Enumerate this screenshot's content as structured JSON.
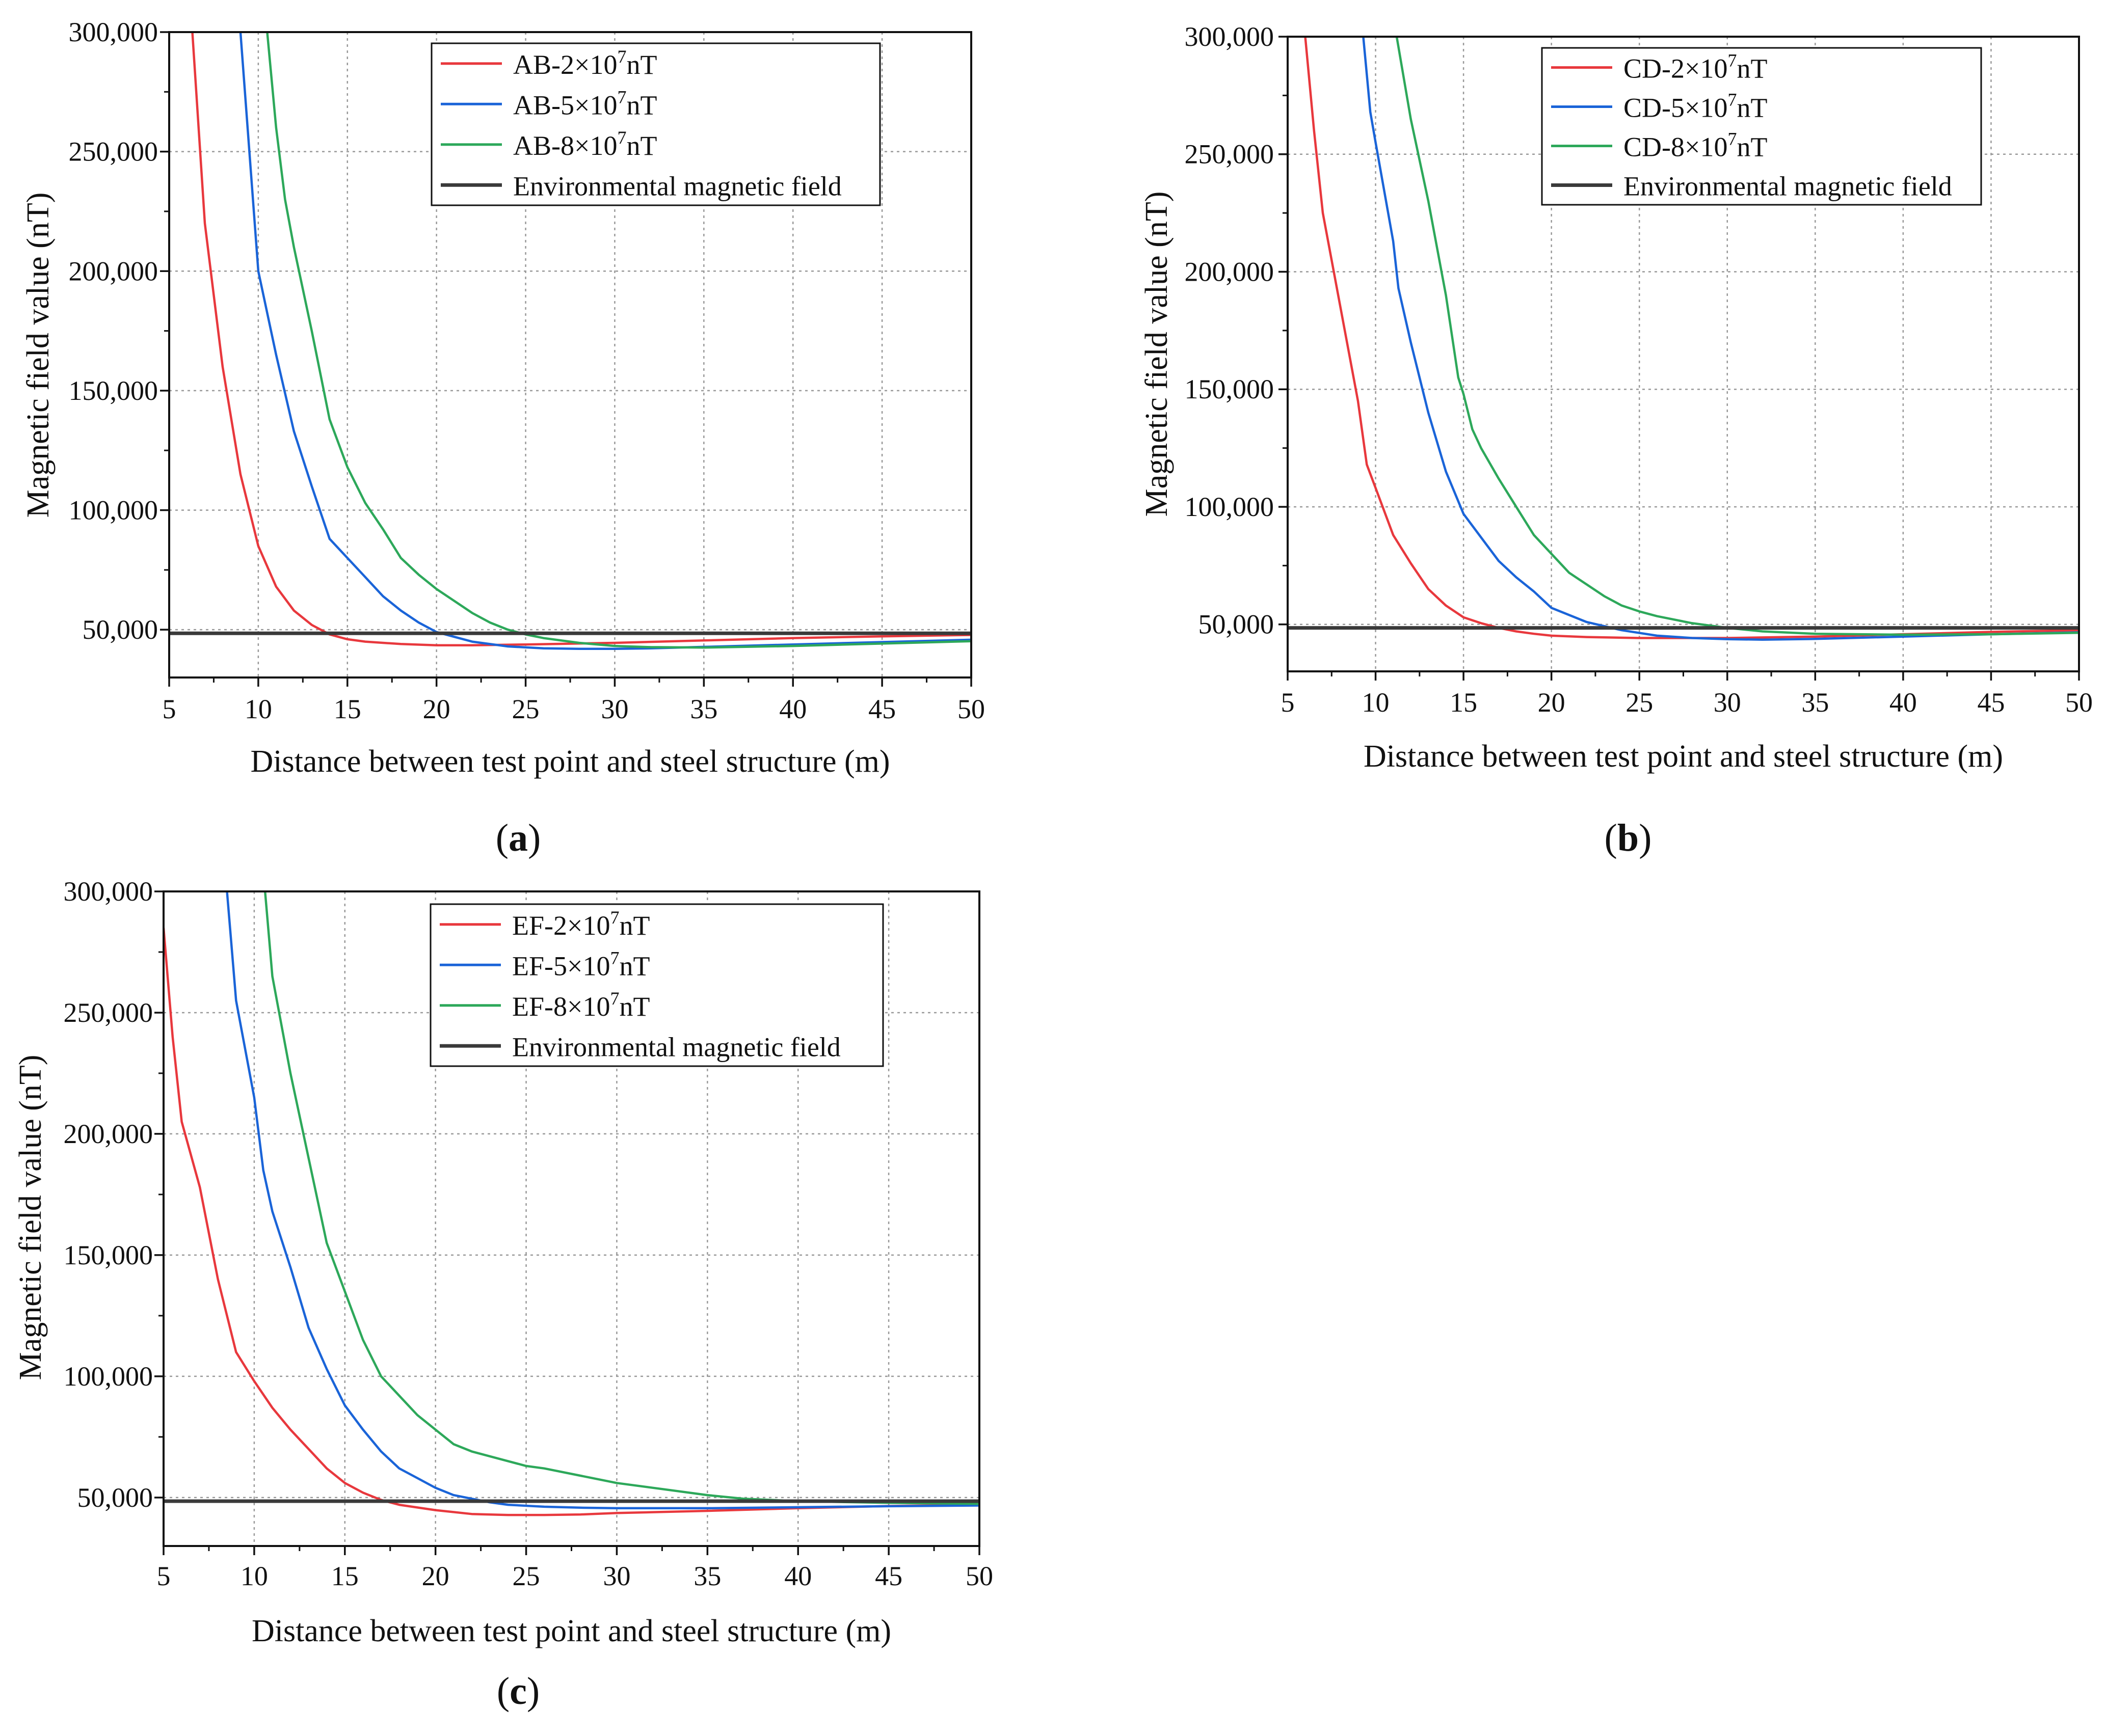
{
  "figure": {
    "x_ticks": [
      "5",
      "10",
      "15",
      "20",
      "25",
      "30",
      "35",
      "40",
      "45",
      "50"
    ],
    "y_ticks": [
      "50,000",
      "100,000",
      "150,000",
      "200,000",
      "250,000",
      "300,000"
    ],
    "legend_common": "Environmental magnetic field"
  },
  "colors": {
    "red": "#e8383d",
    "blue": "#1a64d8",
    "green": "#2da85a",
    "black": "#3a3a3a",
    "grid": "#999999"
  },
  "chart_data": [
    {
      "type": "line",
      "panel": "(a)",
      "caption_letter": "a",
      "xlabel": "Distance between test point and steel structure (m)",
      "ylabel": "Magnetic field value (nT)",
      "xlim": [
        5,
        50
      ],
      "ylim": [
        30000,
        300000
      ],
      "x_ticks": [
        5,
        10,
        15,
        20,
        25,
        30,
        35,
        40,
        45,
        50
      ],
      "y_ticks": [
        50000,
        100000,
        150000,
        200000,
        250000,
        300000
      ],
      "legend_position": "top-center",
      "series": [
        {
          "name": "AB-2×10⁷nT",
          "prefix": "AB-2×10",
          "sup": "7",
          "suffix": "nT",
          "color": "#e8383d",
          "x": [
            6.3,
            7,
            8,
            9,
            10,
            11,
            12,
            13,
            14,
            15,
            16,
            18,
            20,
            22,
            25,
            30,
            35,
            40,
            45,
            50
          ],
          "y": [
            300000,
            220000,
            160000,
            115000,
            85000,
            68000,
            58000,
            52000,
            48000,
            46000,
            45000,
            44000,
            43500,
            43500,
            43800,
            44500,
            45500,
            46500,
            47200,
            47800
          ]
        },
        {
          "name": "AB-5×10⁷nT",
          "prefix": "AB-5×10",
          "sup": "7",
          "suffix": "nT",
          "color": "#1a64d8",
          "x": [
            9,
            9.5,
            10,
            11,
            12,
            13,
            14,
            15,
            16,
            17,
            18,
            19,
            20,
            22,
            24,
            26,
            28,
            30,
            32,
            35,
            40,
            45,
            50
          ],
          "y": [
            300000,
            250000,
            200000,
            165000,
            133000,
            110000,
            88000,
            80000,
            72000,
            64000,
            58000,
            53000,
            49000,
            45000,
            43000,
            42200,
            42000,
            42000,
            42200,
            42800,
            43800,
            44800,
            45800
          ]
        },
        {
          "name": "AB-8×10⁷nT",
          "prefix": "AB-8×10",
          "sup": "7",
          "suffix": "nT",
          "color": "#2da85a",
          "x": [
            10.5,
            11,
            11.5,
            12,
            13,
            14,
            15,
            16,
            17,
            18,
            19,
            20,
            21,
            22,
            23,
            24,
            25,
            26,
            28,
            30,
            32,
            35,
            40,
            45,
            50
          ],
          "y": [
            300000,
            260000,
            230000,
            210000,
            175000,
            138000,
            118000,
            103000,
            92000,
            80000,
            73000,
            67000,
            62000,
            57000,
            53000,
            50000,
            48000,
            46500,
            44500,
            43200,
            42700,
            42500,
            43200,
            44200,
            45200
          ]
        },
        {
          "name": "Environmental magnetic field",
          "color": "#3a3a3a",
          "x": [
            5,
            50
          ],
          "y": [
            48500,
            48500
          ]
        }
      ]
    },
    {
      "type": "line",
      "panel": "(b)",
      "caption_letter": "b",
      "xlabel": "Distance between test point and steel structure (m)",
      "ylabel": "Magnetic field value (nT)",
      "xlim": [
        5,
        50
      ],
      "ylim": [
        30000,
        300000
      ],
      "x_ticks": [
        5,
        10,
        15,
        20,
        25,
        30,
        35,
        40,
        45,
        50
      ],
      "y_ticks": [
        50000,
        100000,
        150000,
        200000,
        250000,
        300000
      ],
      "legend_position": "top-right",
      "series": [
        {
          "name": "CD-2×10⁷nT",
          "prefix": "CD-2×10",
          "sup": "7",
          "suffix": "nT",
          "color": "#e8383d",
          "x": [
            6,
            6.5,
            7,
            8,
            9,
            9.5,
            10,
            11,
            12,
            13,
            14,
            15,
            16,
            17,
            18,
            19,
            20,
            22,
            25,
            30,
            35,
            40,
            45,
            50
          ],
          "y": [
            300000,
            260000,
            225000,
            185000,
            145000,
            118000,
            108000,
            88000,
            76000,
            65000,
            58000,
            53000,
            50500,
            48500,
            47000,
            46000,
            45200,
            44600,
            44200,
            44200,
            44800,
            45800,
            46800,
            47500
          ]
        },
        {
          "name": "CD-5×10⁷nT",
          "prefix": "CD-5×10",
          "sup": "7",
          "suffix": "nT",
          "color": "#1a64d8",
          "x": [
            9.3,
            9.7,
            10,
            11,
            11.3,
            12,
            13,
            14,
            15,
            16,
            17,
            18,
            19,
            20,
            22,
            24,
            26,
            28,
            30,
            32,
            35,
            40,
            45,
            50
          ],
          "y": [
            300000,
            268000,
            255000,
            213000,
            193000,
            170000,
            140000,
            115000,
            97000,
            87000,
            77000,
            70000,
            64000,
            57000,
            51000,
            47500,
            45200,
            44200,
            43700,
            43500,
            43800,
            44800,
            45800,
            46600
          ]
        },
        {
          "name": "CD-8×10⁷nT",
          "prefix": "CD-8×10",
          "sup": "7",
          "suffix": "nT",
          "color": "#2da85a",
          "x": [
            11.2,
            12,
            13,
            14,
            14.7,
            15,
            15.5,
            16,
            17,
            18,
            19,
            20,
            21,
            22,
            23,
            24,
            25,
            26,
            28,
            30,
            32,
            35,
            40,
            45,
            50
          ],
          "y": [
            300000,
            265000,
            230000,
            190000,
            155000,
            148000,
            133000,
            125000,
            112000,
            100000,
            88000,
            80000,
            72000,
            67000,
            62000,
            58000,
            55500,
            53500,
            50500,
            48500,
            47000,
            46000,
            45600,
            45800,
            46400
          ]
        },
        {
          "name": "Environmental magnetic field",
          "color": "#3a3a3a",
          "x": [
            5,
            50
          ],
          "y": [
            48500,
            48500
          ]
        }
      ]
    },
    {
      "type": "line",
      "panel": "(c)",
      "caption_letter": "c",
      "xlabel": "Distance between test point and steel structure (m)",
      "ylabel": "Magnetic field value (nT)",
      "xlim": [
        5,
        50
      ],
      "ylim": [
        30000,
        300000
      ],
      "x_ticks": [
        5,
        10,
        15,
        20,
        25,
        30,
        35,
        40,
        45,
        50
      ],
      "y_ticks": [
        50000,
        100000,
        150000,
        200000,
        250000,
        300000
      ],
      "legend_position": "top-center",
      "series": [
        {
          "name": "EF-2×10⁷nT",
          "prefix": "EF-2×10",
          "sup": "7",
          "suffix": "nT",
          "color": "#e8383d",
          "x": [
            5,
            5.5,
            6,
            7,
            8,
            9,
            10,
            11,
            12,
            13,
            14,
            15,
            16,
            17,
            18,
            20,
            22,
            24,
            26,
            28,
            30,
            35,
            40,
            45,
            50
          ],
          "y": [
            285000,
            240000,
            205000,
            178000,
            140000,
            110000,
            98000,
            87000,
            78000,
            70000,
            62000,
            56000,
            52000,
            49000,
            47000,
            44800,
            43200,
            42800,
            42800,
            43000,
            43600,
            44500,
            45600,
            46500,
            47000
          ]
        },
        {
          "name": "EF-5×10⁷nT",
          "prefix": "EF-5×10",
          "sup": "7",
          "suffix": "nT",
          "color": "#1a64d8",
          "x": [
            8.5,
            9,
            10,
            10.5,
            11,
            12,
            13,
            14,
            15,
            16,
            17,
            18,
            19,
            20,
            21,
            22,
            23,
            24,
            26,
            28,
            30,
            35,
            40,
            45,
            50
          ],
          "y": [
            300000,
            255000,
            215000,
            185000,
            168000,
            145000,
            120000,
            103000,
            88000,
            78000,
            69000,
            62000,
            58000,
            54000,
            51000,
            49500,
            48000,
            47000,
            46200,
            45800,
            45600,
            45600,
            46000,
            46400,
            46700
          ]
        },
        {
          "name": "EF-8×10⁷nT",
          "prefix": "EF-8×10",
          "sup": "7",
          "suffix": "nT",
          "color": "#2da85a",
          "x": [
            10.6,
            11,
            12,
            13,
            14,
            15,
            16,
            17,
            18,
            19,
            20,
            21,
            22,
            23,
            24,
            25,
            26,
            28,
            30,
            32,
            35,
            37,
            40,
            45,
            50
          ],
          "y": [
            300000,
            265000,
            225000,
            190000,
            155000,
            135000,
            115000,
            100000,
            92000,
            84000,
            78000,
            72000,
            69000,
            67000,
            65000,
            63000,
            62000,
            59000,
            56000,
            54000,
            51000,
            49500,
            48500,
            47800,
            47400
          ]
        },
        {
          "name": "Environmental magnetic field",
          "color": "#3a3a3a",
          "x": [
            5,
            50
          ],
          "y": [
            48500,
            48500
          ]
        }
      ]
    }
  ]
}
